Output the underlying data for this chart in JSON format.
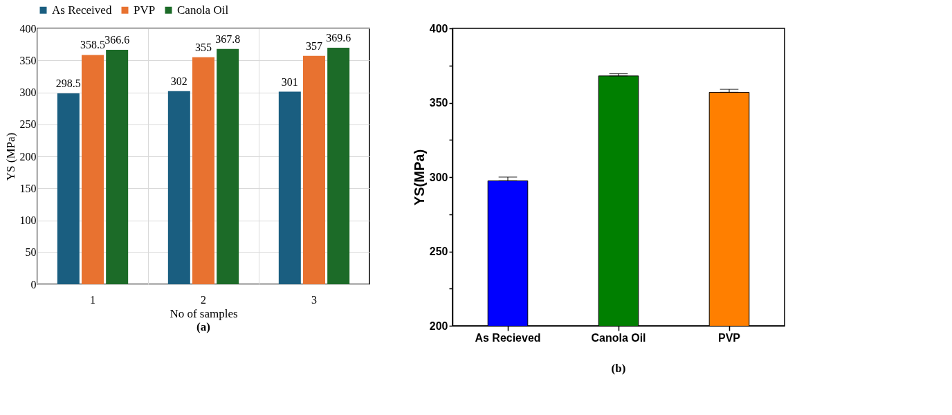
{
  "chart_data": [
    {
      "type": "bar",
      "categories": [
        "1",
        "2",
        "3"
      ],
      "xlabel": "No of samples",
      "ylabel": "YS (MPa)",
      "ylim": [
        0,
        400
      ],
      "yticks": [
        0,
        50,
        100,
        150,
        200,
        250,
        300,
        350,
        400
      ],
      "grid": true,
      "legend": "top",
      "data_labels": true,
      "annotations": [
        "(a)"
      ],
      "series": [
        {
          "name": "As Received",
          "color": "#1a5e80",
          "values": [
            298.5,
            302,
            301
          ]
        },
        {
          "name": "PVP",
          "color": "#e87230",
          "values": [
            358.5,
            355,
            357
          ]
        },
        {
          "name": "Canola Oil",
          "color": "#1c6b28",
          "values": [
            366.6,
            367.8,
            369.6
          ]
        }
      ]
    },
    {
      "type": "bar",
      "categories": [
        "As Recieved",
        "Canola Oil",
        "PVP"
      ],
      "ylabel": "YS(MPa)",
      "ylim": [
        200,
        400
      ],
      "yticks": [
        200,
        {
          "value": 225,
          "label": null
        },
        250,
        {
          "value": 275,
          "label": null
        },
        300,
        {
          "value": 325,
          "label": null
        },
        350,
        {
          "value": 375,
          "label": null
        },
        400
      ],
      "grid": false,
      "annotations": [
        "(b)"
      ],
      "values": [
        297.5,
        368,
        357
      ],
      "colors": [
        "#0000ff",
        "#007f00",
        "#ff7f00"
      ],
      "errors": [
        [
          297.5,
          300
        ],
        [
          368,
          369.5
        ],
        [
          357,
          359
        ]
      ]
    }
  ]
}
